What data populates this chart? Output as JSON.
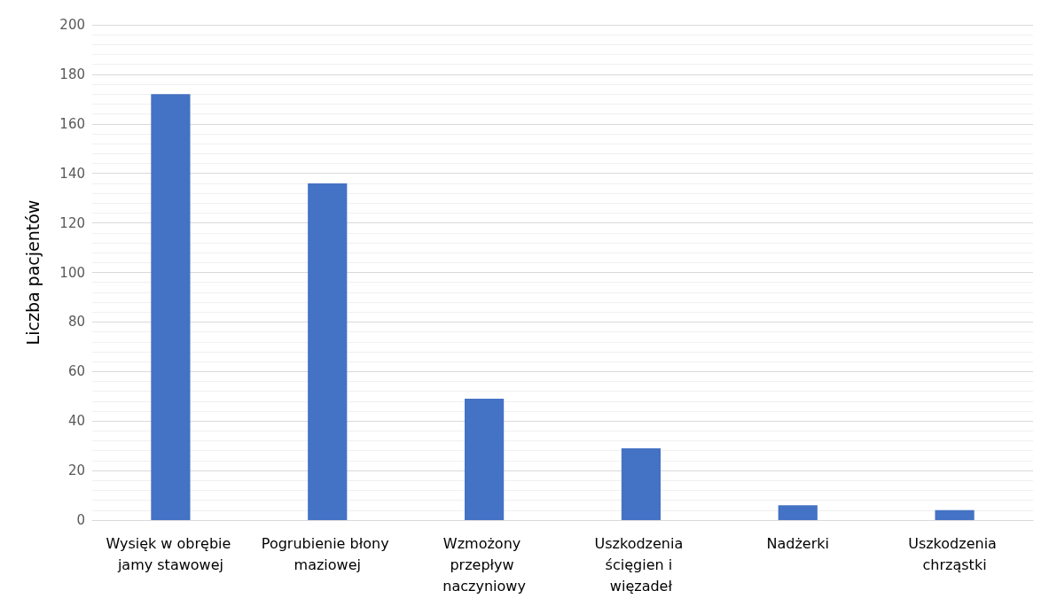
{
  "chart_data": {
    "type": "bar",
    "ylabel": "Liczba pacjentów",
    "categories": [
      "Wysięk w obrębie jamy stawowej",
      "Pogrubienie błony maziowej",
      "Wzmożony przepływ naczyniowy",
      "Uszkodzenia ścięgien i więzadeł",
      "Nadżerki",
      "Uszkodzenia chrząstki"
    ],
    "values": [
      172,
      136,
      49,
      29,
      6,
      4
    ],
    "color": "#4472c4",
    "ylim": [
      0,
      200
    ],
    "yticks": [
      0,
      20,
      40,
      60,
      80,
      100,
      120,
      140,
      160,
      180,
      200
    ],
    "grid": "y"
  }
}
